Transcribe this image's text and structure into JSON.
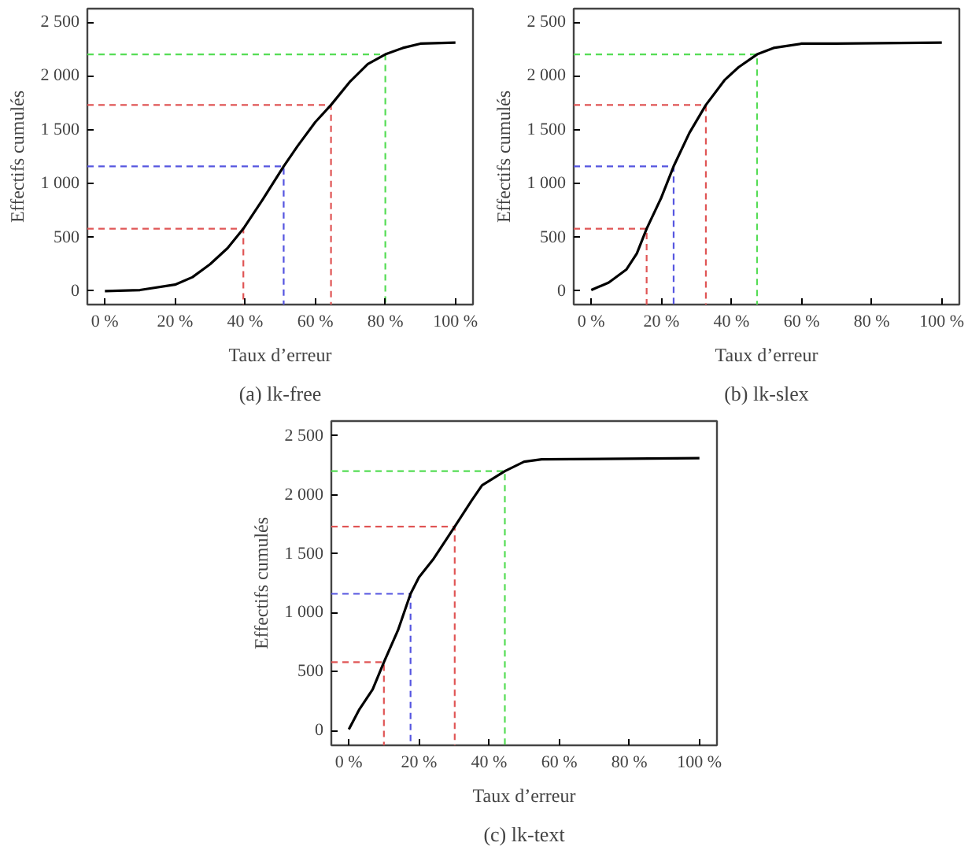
{
  "chart_data": [
    {
      "type": "line",
      "title": "(a) lk-free",
      "xlabel": "Taux d’erreur",
      "ylabel": "Effectifs cumulés",
      "xlim": [
        -5,
        105
      ],
      "ylim": [
        -125,
        2625
      ],
      "xticks": [
        {
          "value": 0,
          "label": "0 %"
        },
        {
          "value": 20,
          "label": "20 %"
        },
        {
          "value": 40,
          "label": "40 %"
        },
        {
          "value": 60,
          "label": "60 %"
        },
        {
          "value": 80,
          "label": "80 %"
        },
        {
          "value": 100,
          "label": "100 %"
        }
      ],
      "yticks": [
        0,
        500,
        {
          "value": 1000,
          "label": "1 000"
        },
        {
          "value": 1500,
          "label": "1 500"
        },
        {
          "value": 2000,
          "label": "2 000"
        },
        {
          "value": 2500,
          "label": "2 500"
        }
      ],
      "series": [
        {
          "color": "#000000",
          "line_style": "solid",
          "x": [
            0,
            10,
            20,
            25,
            30,
            35,
            39.5,
            45,
            51,
            55,
            60,
            64.5,
            70,
            75,
            80,
            85,
            90,
            100
          ],
          "values": [
            0,
            10,
            60,
            130,
            250,
            400,
            580,
            850,
            1160,
            1350,
            1570,
            1730,
            1950,
            2110,
            2200,
            2260,
            2300,
            2310
          ]
        },
        {
          "color": "#e05555",
          "line_style": "dashed",
          "x": [
            -5,
            39.5,
            39.5
          ],
          "values": [
            580,
            580,
            -125
          ]
        },
        {
          "color": "#5555e0",
          "line_style": "dashed",
          "x": [
            -5,
            51,
            51
          ],
          "values": [
            1160,
            1160,
            -125
          ]
        },
        {
          "color": "#e05555",
          "line_style": "dashed",
          "x": [
            -5,
            64.5,
            64.5
          ],
          "values": [
            1730,
            1730,
            -125
          ]
        },
        {
          "color": "#55dd55",
          "line_style": "dashed",
          "x": [
            -5,
            80,
            80
          ],
          "values": [
            2200,
            2200,
            -125
          ]
        }
      ]
    },
    {
      "type": "line",
      "title": "(b) lk-slex",
      "xlabel": "Taux d’erreur",
      "ylabel": "Effectifs cumulés",
      "xlim": [
        -5,
        105
      ],
      "ylim": [
        -125,
        2625
      ],
      "xticks": [
        {
          "value": 0,
          "label": "0 %"
        },
        {
          "value": 20,
          "label": "20 %"
        },
        {
          "value": 40,
          "label": "40 %"
        },
        {
          "value": 60,
          "label": "60 %"
        },
        {
          "value": 80,
          "label": "80 %"
        },
        {
          "value": 100,
          "label": "100 %"
        }
      ],
      "yticks": [
        0,
        500,
        {
          "value": 1000,
          "label": "1 000"
        },
        {
          "value": 1500,
          "label": "1 500"
        },
        {
          "value": 2000,
          "label": "2 000"
        },
        {
          "value": 2500,
          "label": "2 500"
        }
      ],
      "series": [
        {
          "color": "#000000",
          "line_style": "solid",
          "x": [
            0,
            5,
            10,
            13,
            15.8,
            20,
            23.5,
            28,
            32.7,
            38,
            42,
            47.3,
            52,
            60,
            70,
            100
          ],
          "values": [
            10,
            80,
            200,
            350,
            580,
            870,
            1160,
            1470,
            1730,
            1960,
            2080,
            2200,
            2260,
            2300,
            2300,
            2310
          ]
        },
        {
          "color": "#e05555",
          "line_style": "dashed",
          "x": [
            -5,
            15.8,
            15.8
          ],
          "values": [
            580,
            580,
            -125
          ]
        },
        {
          "color": "#5555e0",
          "line_style": "dashed",
          "x": [
            -5,
            23.5,
            23.5
          ],
          "values": [
            1160,
            1160,
            -125
          ]
        },
        {
          "color": "#e05555",
          "line_style": "dashed",
          "x": [
            -5,
            32.7,
            32.7
          ],
          "values": [
            1730,
            1730,
            -125
          ]
        },
        {
          "color": "#55dd55",
          "line_style": "dashed",
          "x": [
            -5,
            47.3,
            47.3
          ],
          "values": [
            2200,
            2200,
            -125
          ]
        }
      ]
    },
    {
      "type": "line",
      "title": "(c) lk-text",
      "xlabel": "Taux d’erreur",
      "ylabel": "Effectifs cumulés",
      "xlim": [
        -5,
        105
      ],
      "ylim": [
        -125,
        2625
      ],
      "xticks": [
        {
          "value": 0,
          "label": "0 %"
        },
        {
          "value": 20,
          "label": "20 %"
        },
        {
          "value": 40,
          "label": "40 %"
        },
        {
          "value": 60,
          "label": "60 %"
        },
        {
          "value": 80,
          "label": "80 %"
        },
        {
          "value": 100,
          "label": "100 %"
        }
      ],
      "yticks": [
        0,
        500,
        {
          "value": 1000,
          "label": "1 000"
        },
        {
          "value": 1500,
          "label": "1 500"
        },
        {
          "value": 2000,
          "label": "2 000"
        },
        {
          "value": 2500,
          "label": "2 500"
        }
      ],
      "series": [
        {
          "color": "#000000",
          "line_style": "solid",
          "x": [
            0,
            3,
            6.8,
            10,
            14,
            17.6,
            20,
            24,
            30.2,
            35,
            38,
            44.5,
            50,
            55,
            100
          ],
          "values": [
            10,
            180,
            350,
            580,
            850,
            1160,
            1300,
            1450,
            1730,
            1950,
            2080,
            2200,
            2280,
            2300,
            2310
          ]
        },
        {
          "color": "#e05555",
          "line_style": "dashed",
          "x": [
            -5,
            10,
            10
          ],
          "values": [
            580,
            580,
            -125
          ]
        },
        {
          "color": "#5555e0",
          "line_style": "dashed",
          "x": [
            -5,
            17.6,
            17.6
          ],
          "values": [
            1160,
            1160,
            -125
          ]
        },
        {
          "color": "#e05555",
          "line_style": "dashed",
          "x": [
            -5,
            30.2,
            30.2
          ],
          "values": [
            1730,
            1730,
            -125
          ]
        },
        {
          "color": "#55dd55",
          "line_style": "dashed",
          "x": [
            -5,
            44.5,
            44.5
          ],
          "values": [
            2200,
            2200,
            -125
          ]
        }
      ]
    }
  ]
}
